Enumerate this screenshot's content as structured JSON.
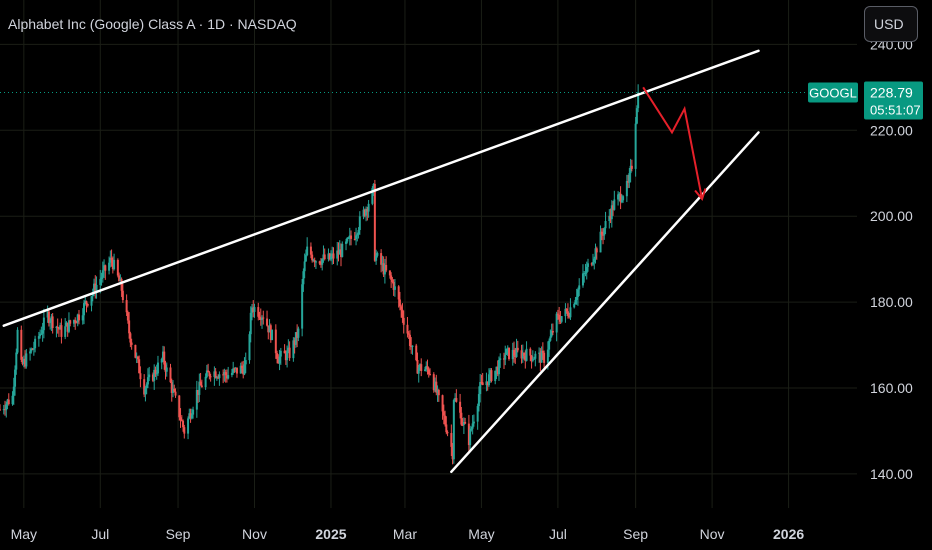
{
  "header": {
    "symbol_title": "Alphabet Inc (Google) Class A · 1D · NASDAQ",
    "currency": "USD"
  },
  "price_badge": {
    "ticker": "GOOGL",
    "price": "228.79",
    "countdown": "05:51:07",
    "color": "#089981"
  },
  "colors": {
    "background": "#000000",
    "grid": "#1b1e16",
    "up": "#26a69a",
    "down": "#ef5350",
    "trendline": "#ffffff",
    "projection_arrow": "#e5202a",
    "axis_text": "#d1d4dc"
  },
  "chart_data": {
    "type": "candlestick",
    "title": "Alphabet Inc (Google) Class A · 1D · NASDAQ",
    "x_tick_labels": [
      "May",
      "Jul",
      "Sep",
      "Nov",
      "2025",
      "Mar",
      "May",
      "Jul",
      "Sep",
      "Nov",
      "2026"
    ],
    "x_tick_dates": [
      "2024-05-01",
      "2024-07-01",
      "2024-09-01",
      "2024-11-01",
      "2025-01-01",
      "2025-03-01",
      "2025-05-01",
      "2025-07-01",
      "2025-09-01",
      "2025-11-01",
      "2026-01-01"
    ],
    "y_ticks": [
      140,
      160,
      180,
      200,
      220,
      240
    ],
    "y_tick_labels": [
      "140.00",
      "160.00",
      "180.00",
      "200.00",
      "220.00",
      "240.00"
    ],
    "ylim": [
      133,
      248
    ],
    "xlim": [
      "2024-04-12",
      "2026-02-15"
    ],
    "grid": true,
    "last_price": 228.79,
    "price_path": [
      [
        "2024-04-12",
        155
      ],
      [
        "2024-04-22",
        158
      ],
      [
        "2024-04-26",
        173
      ],
      [
        "2024-04-29",
        165
      ],
      [
        "2024-05-10",
        170
      ],
      [
        "2024-05-20",
        177
      ],
      [
        "2024-05-31",
        173
      ],
      [
        "2024-06-14",
        177
      ],
      [
        "2024-06-28",
        184
      ],
      [
        "2024-07-10",
        190
      ],
      [
        "2024-07-18",
        183
      ],
      [
        "2024-07-24",
        173
      ],
      [
        "2024-08-05",
        160
      ],
      [
        "2024-08-12",
        163
      ],
      [
        "2024-08-20",
        167
      ],
      [
        "2024-09-06",
        150
      ],
      [
        "2024-09-16",
        159
      ],
      [
        "2024-09-27",
        164
      ],
      [
        "2024-10-10",
        163
      ],
      [
        "2024-10-25",
        165
      ],
      [
        "2024-10-30",
        179
      ],
      [
        "2024-11-08",
        177
      ],
      [
        "2024-11-15",
        172
      ],
      [
        "2024-11-20",
        167
      ],
      [
        "2024-11-29",
        168
      ],
      [
        "2024-12-06",
        173
      ],
      [
        "2024-12-10",
        187
      ],
      [
        "2024-12-13",
        192
      ],
      [
        "2024-12-20",
        190
      ],
      [
        "2024-12-31",
        190
      ],
      [
        "2025-01-10",
        192
      ],
      [
        "2025-01-20",
        196
      ],
      [
        "2025-02-04",
        206
      ],
      [
        "2025-02-05",
        191
      ],
      [
        "2025-02-20",
        184
      ],
      [
        "2025-03-04",
        172
      ],
      [
        "2025-03-10",
        165
      ],
      [
        "2025-03-21",
        164
      ],
      [
        "2025-04-04",
        150
      ],
      [
        "2025-04-08",
        145
      ],
      [
        "2025-04-09",
        158
      ],
      [
        "2025-04-21",
        148
      ],
      [
        "2025-04-30",
        160
      ],
      [
        "2025-05-15",
        165
      ],
      [
        "2025-05-20",
        168
      ],
      [
        "2025-06-03",
        168
      ],
      [
        "2025-06-20",
        167
      ],
      [
        "2025-06-30",
        176
      ],
      [
        "2025-07-10",
        178
      ],
      [
        "2025-07-20",
        185
      ],
      [
        "2025-07-31",
        192
      ],
      [
        "2025-08-08",
        198
      ],
      [
        "2025-08-15",
        203
      ],
      [
        "2025-08-26",
        207
      ],
      [
        "2025-08-29",
        212
      ],
      [
        "2025-09-03",
        230
      ]
    ],
    "trendlines": [
      {
        "from": [
          "2024-04-15",
          174.5
        ],
        "to": [
          "2025-12-08",
          238.5
        ],
        "color": "#ffffff"
      },
      {
        "from": [
          "2025-04-07",
          140.5
        ],
        "to": [
          "2025-12-08",
          219.5
        ],
        "color": "#ffffff"
      }
    ],
    "projection_arrow": {
      "color": "#e5202a",
      "points": [
        [
          "2025-09-07",
          230
        ],
        [
          "2025-09-30",
          219.5
        ],
        [
          "2025-10-10",
          225
        ],
        [
          "2025-10-24",
          204
        ]
      ]
    }
  }
}
